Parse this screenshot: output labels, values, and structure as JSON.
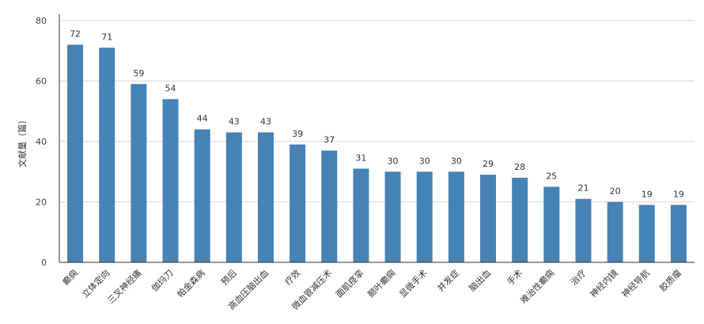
{
  "colors": {
    "bar": "#4682b4",
    "grid": "#d9d9d9",
    "axis": "#333333"
  },
  "chart_data": {
    "type": "bar",
    "ylabel": "文献量（篇）",
    "ylim": [
      0,
      80
    ],
    "yticks": [
      0,
      20,
      40,
      60,
      80
    ],
    "grid": true,
    "categories": [
      "癫痫",
      "立体定向",
      "三叉神经痛",
      "伽玛刀",
      "帕金森病",
      "预后",
      "高血压脑出血",
      "疗效",
      "微血管减压术",
      "面肌痉挛",
      "颞叶癫痫",
      "显微手术",
      "并发症",
      "脑出血",
      "手术",
      "难治性癫痫",
      "治疗",
      "神经内镜",
      "神经导航",
      "胶质瘤"
    ],
    "values": [
      72,
      71,
      59,
      54,
      44,
      43,
      43,
      39,
      37,
      31,
      30,
      30,
      30,
      29,
      28,
      25,
      21,
      20,
      19,
      19
    ]
  }
}
